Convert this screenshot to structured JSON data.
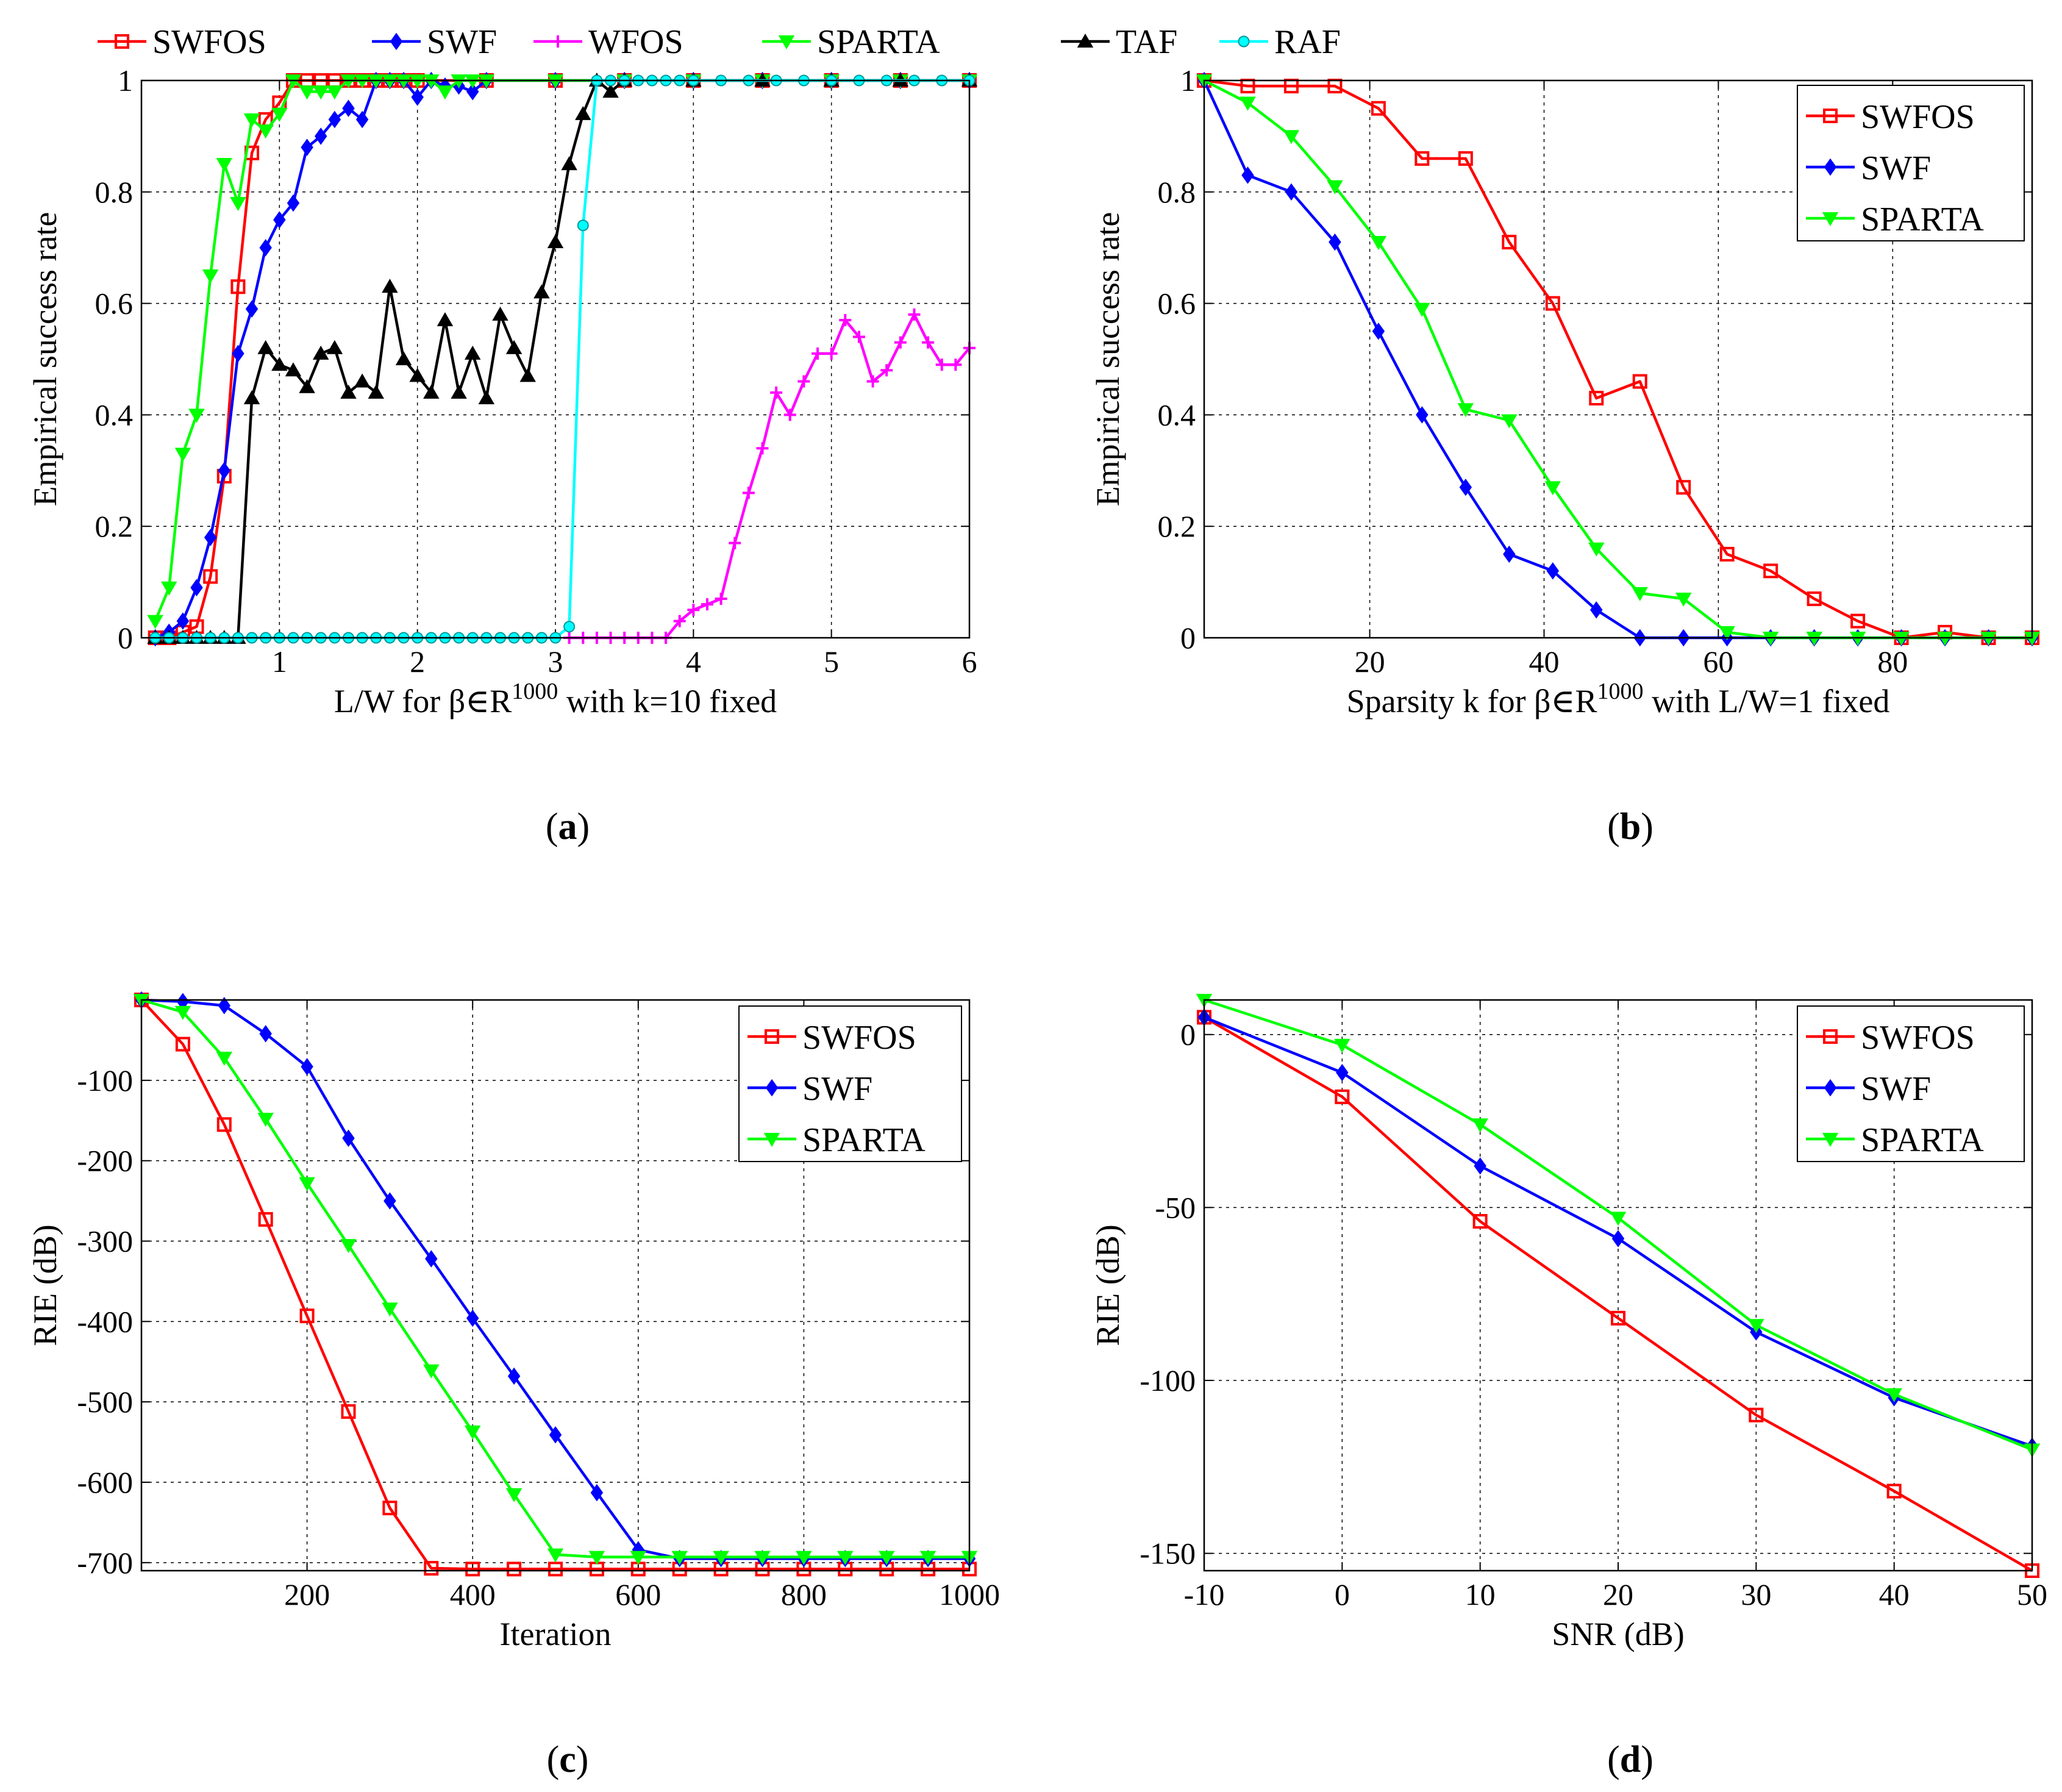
{
  "chart_data": [
    {
      "id": "a",
      "type": "line",
      "caption": "a",
      "xlabel": "L/W for β∈R",
      "xlabel_sup": "1000",
      "xlabel_tail": " with k=10 fixed",
      "ylabel": "Empirical success rate",
      "xlim": [
        0,
        6
      ],
      "ylim": [
        0,
        1
      ],
      "xticks": [
        1,
        2,
        3,
        4,
        5,
        6
      ],
      "xtick_labels": [
        "1",
        "2",
        "3",
        "4",
        "5",
        "6"
      ],
      "yticks": [
        0,
        0.2,
        0.4,
        0.6,
        0.8,
        1
      ],
      "ytick_labels": [
        "0",
        "0.2",
        "0.4",
        "0.6",
        "0.8",
        "1"
      ],
      "grid": true,
      "legend_position": "top-outside",
      "series": [
        {
          "name": "SWFOS",
          "color": "#ff0000",
          "marker": "square",
          "x": [
            0.1,
            0.2,
            0.3,
            0.4,
            0.5,
            0.6,
            0.7,
            0.8,
            0.9,
            1.0,
            1.1,
            1.2,
            1.3,
            1.4,
            1.5,
            1.6,
            1.7,
            1.8,
            1.9,
            2.0,
            2.5,
            3.0,
            3.5,
            4.0,
            4.5,
            5.0,
            5.5,
            6.0
          ],
          "y": [
            0,
            0,
            0.01,
            0.02,
            0.11,
            0.29,
            0.63,
            0.87,
            0.93,
            0.96,
            1,
            1,
            1,
            1,
            1,
            1,
            1,
            1,
            1,
            1,
            1,
            1,
            1,
            1,
            1,
            1,
            1,
            1
          ]
        },
        {
          "name": "SWF",
          "color": "#0000ff",
          "marker": "diamond",
          "x": [
            0.1,
            0.2,
            0.3,
            0.4,
            0.5,
            0.6,
            0.7,
            0.8,
            0.9,
            1.0,
            1.1,
            1.2,
            1.3,
            1.4,
            1.5,
            1.6,
            1.7,
            1.8,
            1.9,
            2.0,
            2.1,
            2.2,
            2.3,
            2.4,
            2.5,
            3.0,
            3.5,
            4.0,
            4.5,
            5.0,
            5.5,
            6.0
          ],
          "y": [
            0,
            0.01,
            0.03,
            0.09,
            0.18,
            0.3,
            0.51,
            0.59,
            0.7,
            0.75,
            0.78,
            0.88,
            0.9,
            0.93,
            0.95,
            0.93,
            1,
            1,
            1,
            0.97,
            1,
            0.99,
            0.99,
            0.98,
            1,
            1,
            1,
            1,
            1,
            1,
            1,
            1
          ]
        },
        {
          "name": "WFOS",
          "color": "#ff00ff",
          "marker": "plus",
          "x": [
            3.1,
            3.2,
            3.3,
            3.4,
            3.5,
            3.6,
            3.7,
            3.8,
            3.9,
            4.0,
            4.1,
            4.2,
            4.3,
            4.4,
            4.5,
            4.6,
            4.7,
            4.8,
            4.9,
            5.0,
            5.1,
            5.2,
            5.3,
            5.4,
            5.5,
            5.6,
            5.7,
            5.8,
            5.9,
            6.0
          ],
          "y": [
            0,
            0,
            0,
            0,
            0,
            0,
            0,
            0,
            0.03,
            0.05,
            0.06,
            0.07,
            0.17,
            0.26,
            0.34,
            0.44,
            0.4,
            0.46,
            0.51,
            0.51,
            0.57,
            0.54,
            0.46,
            0.48,
            0.53,
            0.58,
            0.53,
            0.49,
            0.49,
            0.52
          ]
        },
        {
          "name": "SPARTA",
          "color": "#00ff00",
          "marker": "triangle-down",
          "x": [
            0.1,
            0.2,
            0.3,
            0.4,
            0.5,
            0.6,
            0.7,
            0.8,
            0.9,
            1.0,
            1.1,
            1.2,
            1.3,
            1.4,
            1.5,
            1.6,
            1.7,
            1.8,
            1.9,
            2.0,
            2.1,
            2.2,
            2.3,
            2.4,
            2.5,
            3.0,
            3.5,
            4.0,
            4.5,
            5.0,
            5.5,
            6.0
          ],
          "y": [
            0.03,
            0.09,
            0.33,
            0.4,
            0.65,
            0.85,
            0.78,
            0.93,
            0.91,
            0.94,
            1,
            0.98,
            0.98,
            0.98,
            1,
            1,
            1,
            1,
            1,
            1,
            1,
            0.98,
            1,
            1,
            1,
            1,
            1,
            1,
            1,
            1,
            1,
            1
          ]
        },
        {
          "name": "TAF",
          "color": "#000000",
          "marker": "triangle-up",
          "x": [
            0.1,
            0.2,
            0.3,
            0.4,
            0.5,
            0.6,
            0.7,
            0.8,
            0.9,
            1.0,
            1.1,
            1.2,
            1.3,
            1.4,
            1.5,
            1.6,
            1.7,
            1.8,
            1.9,
            2.0,
            2.1,
            2.2,
            2.3,
            2.4,
            2.5,
            2.6,
            2.7,
            2.8,
            2.9,
            3.0,
            3.1,
            3.2,
            3.3,
            3.4,
            3.5,
            4.0,
            4.5,
            5.0,
            5.5,
            6.0
          ],
          "y": [
            0,
            0,
            0,
            0,
            0,
            0,
            0,
            0.43,
            0.52,
            0.49,
            0.48,
            0.45,
            0.51,
            0.52,
            0.44,
            0.46,
            0.44,
            0.63,
            0.5,
            0.47,
            0.44,
            0.57,
            0.44,
            0.51,
            0.43,
            0.58,
            0.52,
            0.47,
            0.62,
            0.71,
            0.85,
            0.94,
            1,
            0.98,
            1,
            1,
            1,
            1,
            1,
            1
          ]
        },
        {
          "name": "RAF",
          "color": "#00ffff",
          "marker": "circle",
          "x": [
            0.1,
            0.2,
            0.3,
            0.4,
            0.5,
            0.6,
            0.7,
            0.8,
            0.9,
            1.0,
            1.1,
            1.2,
            1.3,
            1.4,
            1.5,
            1.6,
            1.7,
            1.8,
            1.9,
            2.0,
            2.1,
            2.2,
            2.3,
            2.4,
            2.5,
            2.6,
            2.7,
            2.8,
            2.9,
            3.0,
            3.1,
            3.2,
            3.3,
            3.4,
            3.5,
            3.6,
            3.7,
            3.8,
            3.9,
            4.0,
            4.2,
            4.4,
            4.6,
            4.8,
            5.0,
            5.2,
            5.4,
            5.6,
            5.8,
            6.0
          ],
          "y": [
            0,
            0,
            0,
            0,
            0,
            0,
            0,
            0,
            0,
            0,
            0,
            0,
            0,
            0,
            0,
            0,
            0,
            0,
            0,
            0,
            0,
            0,
            0,
            0,
            0,
            0,
            0,
            0,
            0,
            0,
            0.02,
            0.74,
            1,
            1,
            1,
            1,
            1,
            1,
            1,
            1,
            1,
            1,
            1,
            1,
            1,
            1,
            1,
            1,
            1,
            1
          ]
        }
      ]
    },
    {
      "id": "b",
      "type": "line",
      "caption": "b",
      "xlabel": "Sparsity k for β∈R",
      "xlabel_sup": "1000",
      "xlabel_tail": " with L/W=1 fixed",
      "ylabel": "Empirical success rate",
      "xlim": [
        1,
        96
      ],
      "ylim": [
        0,
        1
      ],
      "xticks": [
        20,
        40,
        60,
        80
      ],
      "xtick_labels": [
        "20",
        "40",
        "60",
        "80"
      ],
      "yticks": [
        0,
        0.2,
        0.4,
        0.6,
        0.8,
        1
      ],
      "ytick_labels": [
        "0",
        "0.2",
        "0.4",
        "0.6",
        "0.8",
        "1"
      ],
      "grid": true,
      "legend_position": "top-right",
      "series": [
        {
          "name": "SWFOS",
          "color": "#ff0000",
          "marker": "square",
          "x": [
            1,
            6,
            11,
            16,
            21,
            26,
            31,
            36,
            41,
            46,
            51,
            56,
            61,
            66,
            71,
            76,
            81,
            86,
            91,
            96
          ],
          "y": [
            1,
            0.99,
            0.99,
            0.99,
            0.95,
            0.86,
            0.86,
            0.71,
            0.6,
            0.43,
            0.46,
            0.27,
            0.15,
            0.12,
            0.07,
            0.03,
            0,
            0.01,
            0,
            0
          ]
        },
        {
          "name": "SWF",
          "color": "#0000ff",
          "marker": "diamond",
          "x": [
            1,
            6,
            11,
            16,
            21,
            26,
            31,
            36,
            41,
            46,
            51,
            56,
            61,
            66,
            71,
            76,
            81,
            86,
            91,
            96
          ],
          "y": [
            1,
            0.83,
            0.8,
            0.71,
            0.55,
            0.4,
            0.27,
            0.15,
            0.12,
            0.05,
            0,
            0,
            0,
            0,
            0,
            0,
            0,
            0,
            0,
            0
          ]
        },
        {
          "name": "SPARTA",
          "color": "#00ff00",
          "marker": "triangle-down",
          "x": [
            1,
            6,
            11,
            16,
            21,
            26,
            31,
            36,
            41,
            46,
            51,
            56,
            61,
            66,
            71,
            76,
            81,
            86,
            91,
            96
          ],
          "y": [
            1,
            0.96,
            0.9,
            0.81,
            0.71,
            0.59,
            0.41,
            0.39,
            0.27,
            0.16,
            0.08,
            0.07,
            0.01,
            0,
            0,
            0,
            0,
            0,
            0,
            0
          ]
        }
      ]
    },
    {
      "id": "c",
      "type": "line",
      "caption": "c",
      "xlabel": "Iteration",
      "ylabel": "RIE (dB)",
      "xlim": [
        0,
        1000
      ],
      "ylim": [
        -710,
        0
      ],
      "xticks": [
        200,
        400,
        600,
        800,
        1000
      ],
      "xtick_labels": [
        "200",
        "400",
        "600",
        "800",
        "1000"
      ],
      "yticks": [
        -700,
        -600,
        -500,
        -400,
        -300,
        -200,
        -100
      ],
      "ytick_labels": [
        "-700",
        "-600",
        "-500",
        "-400",
        "-300",
        "-200",
        "-100"
      ],
      "grid": true,
      "legend_position": "top-right",
      "series": [
        {
          "name": "SWFOS",
          "color": "#ff0000",
          "marker": "square",
          "x": [
            0,
            50,
            100,
            150,
            200,
            250,
            300,
            350,
            400,
            450,
            500,
            550,
            600,
            650,
            700,
            750,
            800,
            850,
            900,
            950,
            1000
          ],
          "y": [
            0,
            -55,
            -155,
            -273,
            -393,
            -512,
            -632,
            -707,
            -708,
            -708,
            -708,
            -708,
            -708,
            -708,
            -708,
            -708,
            -708,
            -708,
            -708,
            -708,
            -708
          ]
        },
        {
          "name": "SWF",
          "color": "#0000ff",
          "marker": "diamond",
          "x": [
            0,
            50,
            100,
            150,
            200,
            250,
            300,
            350,
            400,
            450,
            500,
            550,
            600,
            650,
            700,
            750,
            800,
            850,
            900,
            950,
            1000
          ],
          "y": [
            0,
            -2,
            -7,
            -42,
            -83,
            -172,
            -250,
            -322,
            -396,
            -468,
            -541,
            -613,
            -684,
            -695,
            -695,
            -695,
            -695,
            -695,
            -695,
            -695,
            -695
          ]
        },
        {
          "name": "SPARTA",
          "color": "#00ff00",
          "marker": "triangle-down",
          "x": [
            0,
            50,
            100,
            150,
            200,
            250,
            300,
            350,
            400,
            450,
            500,
            550,
            600,
            650,
            700,
            750,
            800,
            850,
            900,
            950,
            1000
          ],
          "y": [
            0,
            -15,
            -72,
            -148,
            -228,
            -305,
            -384,
            -461,
            -537,
            -615,
            -690,
            -693,
            -693,
            -693,
            -693,
            -693,
            -693,
            -693,
            -693,
            -693,
            -693
          ]
        }
      ]
    },
    {
      "id": "d",
      "type": "line",
      "caption": "d",
      "xlabel": "SNR (dB)",
      "ylabel": "RIE (dB)",
      "xlim": [
        -10,
        50
      ],
      "ylim": [
        -155,
        10
      ],
      "xticks": [
        -10,
        0,
        10,
        20,
        30,
        40,
        50
      ],
      "xtick_labels": [
        "-10",
        "0",
        "10",
        "20",
        "30",
        "40",
        "50"
      ],
      "yticks": [
        -150,
        -100,
        -50,
        0
      ],
      "ytick_labels": [
        "-150",
        "-100",
        "-50",
        "0"
      ],
      "grid": true,
      "legend_position": "top-right",
      "series": [
        {
          "name": "SWFOS",
          "color": "#ff0000",
          "marker": "square",
          "x": [
            -10,
            0,
            10,
            20,
            30,
            40,
            50
          ],
          "y": [
            5,
            -18,
            -54,
            -82,
            -110,
            -132,
            -155
          ]
        },
        {
          "name": "SWF",
          "color": "#0000ff",
          "marker": "diamond",
          "x": [
            -10,
            0,
            10,
            20,
            30,
            40,
            50
          ],
          "y": [
            5,
            -11,
            -38,
            -59,
            -86,
            -105,
            -119
          ]
        },
        {
          "name": "SPARTA",
          "color": "#00ff00",
          "marker": "triangle-down",
          "x": [
            -10,
            0,
            10,
            20,
            30,
            40,
            50
          ],
          "y": [
            10,
            -3,
            -26,
            -53,
            -84,
            -104,
            -120
          ]
        }
      ]
    }
  ]
}
